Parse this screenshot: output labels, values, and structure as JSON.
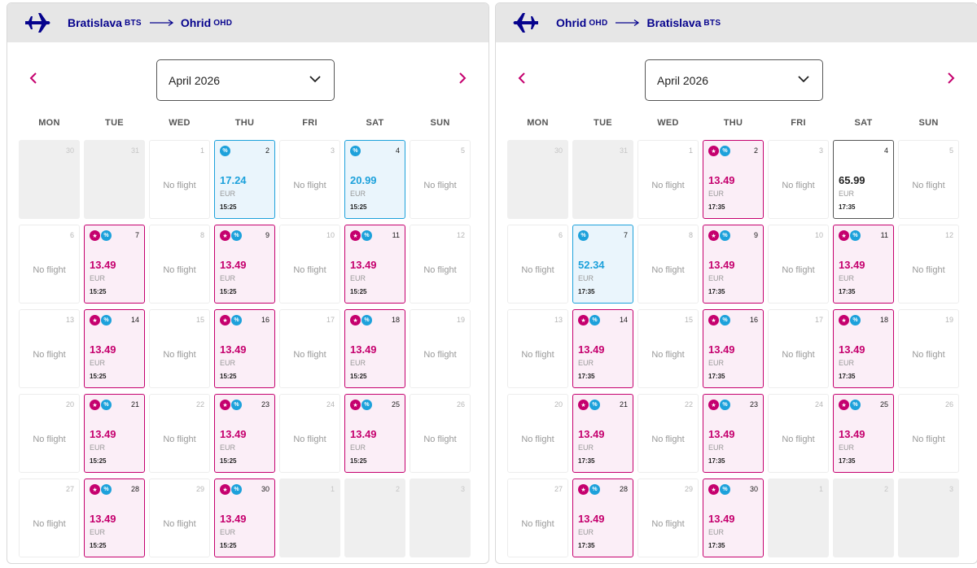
{
  "weekdays": [
    "MON",
    "TUE",
    "WED",
    "THU",
    "FRI",
    "SAT",
    "SUN"
  ],
  "no_flight_label": "No flight",
  "colors": {
    "brand_navy": "#06038d",
    "fare_pink": "#c5006e",
    "fare_blue": "#1da1db",
    "header_bg": "#e6e6e6"
  },
  "icons": {
    "plane": "plane-icon",
    "route_arrow": "long-arrow-right-icon",
    "prev": "chevron-left-icon",
    "next": "chevron-right-icon",
    "dropdown": "chevron-down-icon",
    "star_badge": "star-badge-icon",
    "discount_badge": "percent-badge-icon"
  },
  "panels": [
    {
      "id": "outbound",
      "plane_direction": "right",
      "origin": {
        "city": "Bratislava",
        "code": "BTS"
      },
      "destination": {
        "city": "Ohrid",
        "code": "OHD"
      },
      "month": "April 2026",
      "days": [
        {
          "day": "30",
          "type": "empty"
        },
        {
          "day": "31",
          "type": "empty"
        },
        {
          "day": "1",
          "type": "none"
        },
        {
          "day": "2",
          "type": "fare",
          "style": "blue",
          "badges": [
            "pct"
          ],
          "price": "17.24",
          "currency": "EUR",
          "time": "15:25"
        },
        {
          "day": "3",
          "type": "none"
        },
        {
          "day": "4",
          "type": "fare",
          "style": "blue",
          "badges": [
            "pct"
          ],
          "price": "20.99",
          "currency": "EUR",
          "time": "15:25"
        },
        {
          "day": "5",
          "type": "none"
        },
        {
          "day": "6",
          "type": "none"
        },
        {
          "day": "7",
          "type": "fare",
          "style": "pink",
          "badges": [
            "star",
            "pct"
          ],
          "price": "13.49",
          "currency": "EUR",
          "time": "15:25"
        },
        {
          "day": "8",
          "type": "none"
        },
        {
          "day": "9",
          "type": "fare",
          "style": "pink",
          "badges": [
            "star",
            "pct"
          ],
          "price": "13.49",
          "currency": "EUR",
          "time": "15:25"
        },
        {
          "day": "10",
          "type": "none"
        },
        {
          "day": "11",
          "type": "fare",
          "style": "pink",
          "badges": [
            "star",
            "pct"
          ],
          "price": "13.49",
          "currency": "EUR",
          "time": "15:25"
        },
        {
          "day": "12",
          "type": "none"
        },
        {
          "day": "13",
          "type": "none"
        },
        {
          "day": "14",
          "type": "fare",
          "style": "pink",
          "badges": [
            "star",
            "pct"
          ],
          "price": "13.49",
          "currency": "EUR",
          "time": "15:25"
        },
        {
          "day": "15",
          "type": "none"
        },
        {
          "day": "16",
          "type": "fare",
          "style": "pink",
          "badges": [
            "star",
            "pct"
          ],
          "price": "13.49",
          "currency": "EUR",
          "time": "15:25"
        },
        {
          "day": "17",
          "type": "none"
        },
        {
          "day": "18",
          "type": "fare",
          "style": "pink",
          "badges": [
            "star",
            "pct"
          ],
          "price": "13.49",
          "currency": "EUR",
          "time": "15:25"
        },
        {
          "day": "19",
          "type": "none"
        },
        {
          "day": "20",
          "type": "none"
        },
        {
          "day": "21",
          "type": "fare",
          "style": "pink",
          "badges": [
            "star",
            "pct"
          ],
          "price": "13.49",
          "currency": "EUR",
          "time": "15:25"
        },
        {
          "day": "22",
          "type": "none"
        },
        {
          "day": "23",
          "type": "fare",
          "style": "pink",
          "badges": [
            "star",
            "pct"
          ],
          "price": "13.49",
          "currency": "EUR",
          "time": "15:25"
        },
        {
          "day": "24",
          "type": "none"
        },
        {
          "day": "25",
          "type": "fare",
          "style": "pink",
          "badges": [
            "star",
            "pct"
          ],
          "price": "13.49",
          "currency": "EUR",
          "time": "15:25"
        },
        {
          "day": "26",
          "type": "none"
        },
        {
          "day": "27",
          "type": "none"
        },
        {
          "day": "28",
          "type": "fare",
          "style": "pink",
          "badges": [
            "star",
            "pct"
          ],
          "price": "13.49",
          "currency": "EUR",
          "time": "15:25"
        },
        {
          "day": "29",
          "type": "none"
        },
        {
          "day": "30",
          "type": "fare",
          "style": "pink",
          "badges": [
            "star",
            "pct"
          ],
          "price": "13.49",
          "currency": "EUR",
          "time": "15:25"
        },
        {
          "day": "1",
          "type": "empty"
        },
        {
          "day": "2",
          "type": "empty"
        },
        {
          "day": "3",
          "type": "empty"
        }
      ]
    },
    {
      "id": "return",
      "plane_direction": "left",
      "origin": {
        "city": "Ohrid",
        "code": "OHD"
      },
      "destination": {
        "city": "Bratislava",
        "code": "BTS"
      },
      "month": "April 2026",
      "days": [
        {
          "day": "30",
          "type": "empty"
        },
        {
          "day": "31",
          "type": "empty"
        },
        {
          "day": "1",
          "type": "none"
        },
        {
          "day": "2",
          "type": "fare",
          "style": "pink",
          "badges": [
            "star",
            "pct"
          ],
          "price": "13.49",
          "currency": "EUR",
          "time": "17:35"
        },
        {
          "day": "3",
          "type": "none"
        },
        {
          "day": "4",
          "type": "fare",
          "style": "plain",
          "badges": [],
          "price": "65.99",
          "currency": "EUR",
          "time": "17:35"
        },
        {
          "day": "5",
          "type": "none"
        },
        {
          "day": "6",
          "type": "none"
        },
        {
          "day": "7",
          "type": "fare",
          "style": "blue",
          "badges": [
            "pct"
          ],
          "price": "52.34",
          "currency": "EUR",
          "time": "17:35"
        },
        {
          "day": "8",
          "type": "none"
        },
        {
          "day": "9",
          "type": "fare",
          "style": "pink",
          "badges": [
            "star",
            "pct"
          ],
          "price": "13.49",
          "currency": "EUR",
          "time": "17:35"
        },
        {
          "day": "10",
          "type": "none"
        },
        {
          "day": "11",
          "type": "fare",
          "style": "pink",
          "badges": [
            "star",
            "pct"
          ],
          "price": "13.49",
          "currency": "EUR",
          "time": "17:35"
        },
        {
          "day": "12",
          "type": "none"
        },
        {
          "day": "13",
          "type": "none"
        },
        {
          "day": "14",
          "type": "fare",
          "style": "pink",
          "badges": [
            "star",
            "pct"
          ],
          "price": "13.49",
          "currency": "EUR",
          "time": "17:35"
        },
        {
          "day": "15",
          "type": "none"
        },
        {
          "day": "16",
          "type": "fare",
          "style": "pink",
          "badges": [
            "star",
            "pct"
          ],
          "price": "13.49",
          "currency": "EUR",
          "time": "17:35"
        },
        {
          "day": "17",
          "type": "none"
        },
        {
          "day": "18",
          "type": "fare",
          "style": "pink",
          "badges": [
            "star",
            "pct"
          ],
          "price": "13.49",
          "currency": "EUR",
          "time": "17:35"
        },
        {
          "day": "19",
          "type": "none"
        },
        {
          "day": "20",
          "type": "none"
        },
        {
          "day": "21",
          "type": "fare",
          "style": "pink",
          "badges": [
            "star",
            "pct"
          ],
          "price": "13.49",
          "currency": "EUR",
          "time": "17:35"
        },
        {
          "day": "22",
          "type": "none"
        },
        {
          "day": "23",
          "type": "fare",
          "style": "pink",
          "badges": [
            "star",
            "pct"
          ],
          "price": "13.49",
          "currency": "EUR",
          "time": "17:35"
        },
        {
          "day": "24",
          "type": "none"
        },
        {
          "day": "25",
          "type": "fare",
          "style": "pink",
          "badges": [
            "star",
            "pct"
          ],
          "price": "13.49",
          "currency": "EUR",
          "time": "17:35"
        },
        {
          "day": "26",
          "type": "none"
        },
        {
          "day": "27",
          "type": "none"
        },
        {
          "day": "28",
          "type": "fare",
          "style": "pink",
          "badges": [
            "star",
            "pct"
          ],
          "price": "13.49",
          "currency": "EUR",
          "time": "17:35"
        },
        {
          "day": "29",
          "type": "none"
        },
        {
          "day": "30",
          "type": "fare",
          "style": "pink",
          "badges": [
            "star",
            "pct"
          ],
          "price": "13.49",
          "currency": "EUR",
          "time": "17:35"
        },
        {
          "day": "1",
          "type": "empty"
        },
        {
          "day": "2",
          "type": "empty"
        },
        {
          "day": "3",
          "type": "empty"
        }
      ]
    }
  ]
}
